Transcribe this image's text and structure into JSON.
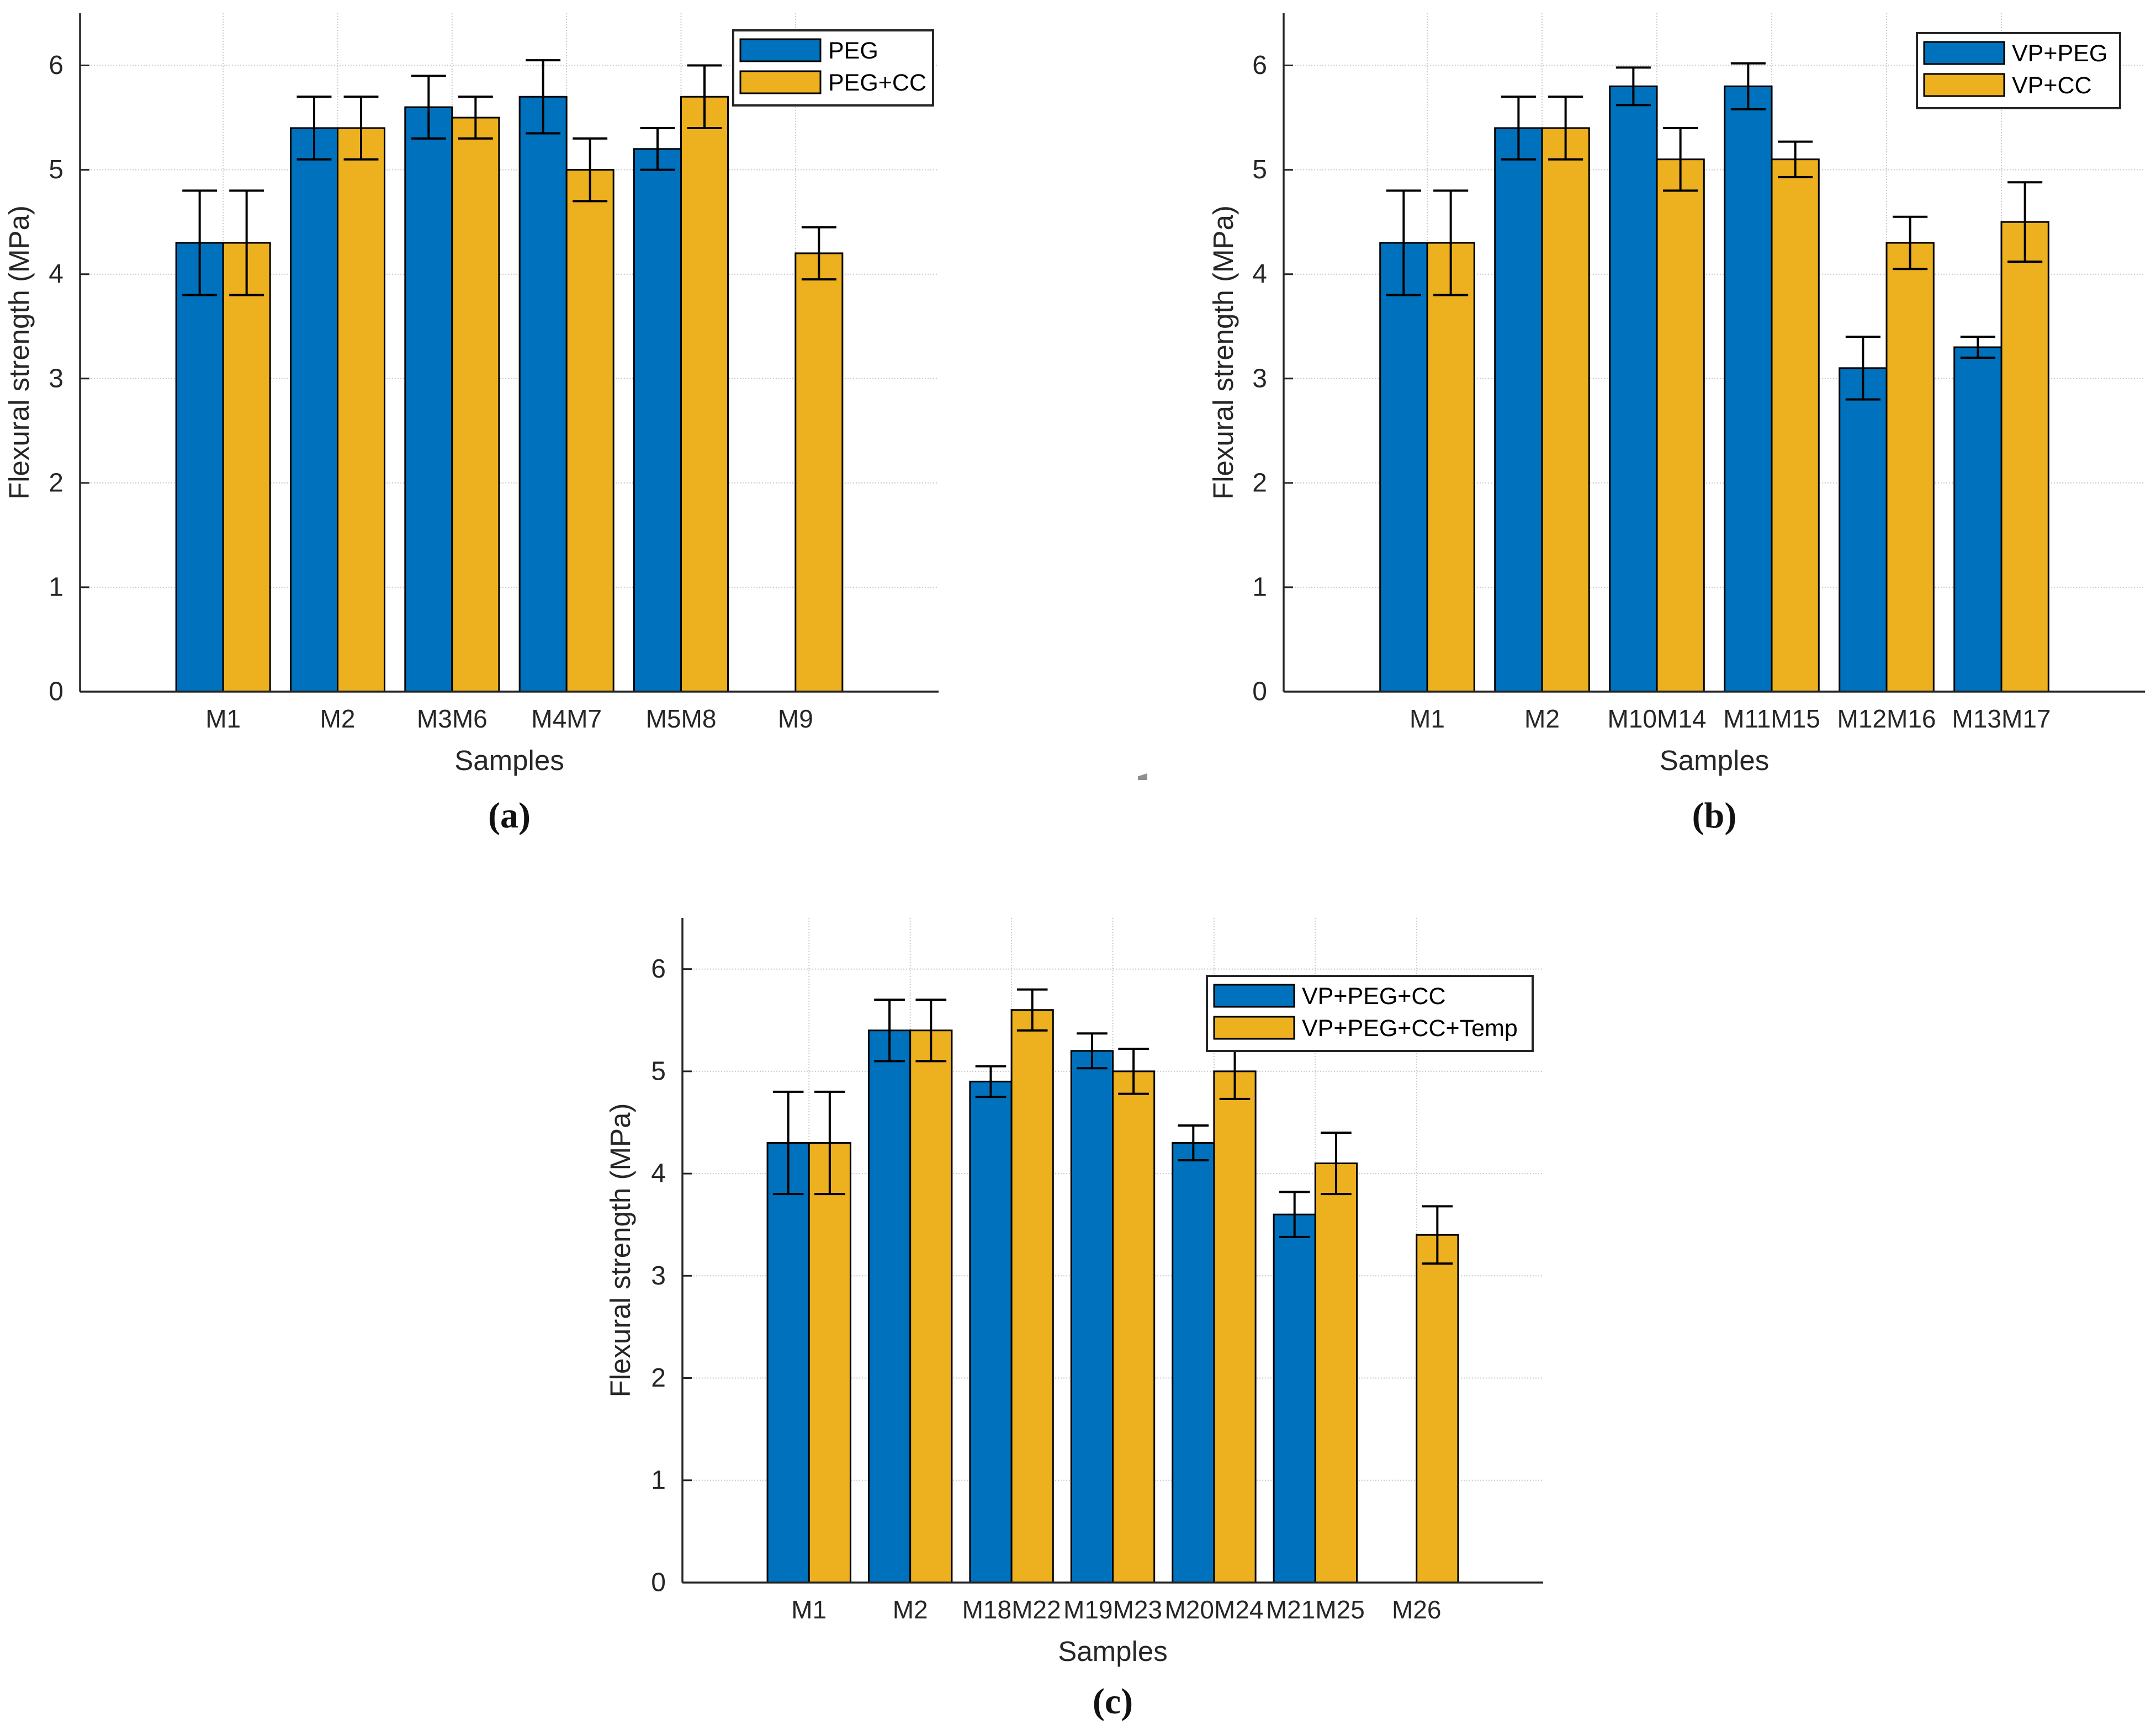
{
  "page": {
    "background": "#ffffff"
  },
  "colors": {
    "axis": "#262626",
    "tick_label": "#262626",
    "grid": "#c9c9c9",
    "bar_edge": "#000000",
    "error_bar": "#000000",
    "legend_border": "#262626",
    "legend_bg": "#ffffff",
    "series_blue": "#0072BD",
    "series_orange": "#EDB120"
  },
  "chart_data": [
    {
      "id": "a",
      "type": "bar",
      "caption": "(a)",
      "title": "",
      "xlabel": "Samples",
      "ylabel": "Flexural strength (MPa)",
      "ylim": [
        0,
        6.5
      ],
      "yticks": [
        0,
        1,
        2,
        3,
        4,
        5,
        6
      ],
      "grid": true,
      "legend_position": "top-right",
      "categories": [
        "M1",
        "M2",
        "M3M6",
        "M4M7",
        "M5M8",
        "M9"
      ],
      "series": [
        {
          "name": "PEG",
          "color": "#0072BD",
          "values": [
            4.3,
            5.4,
            5.6,
            5.7,
            5.2,
            null
          ],
          "errors": [
            0.5,
            0.3,
            0.3,
            0.35,
            0.2,
            null
          ]
        },
        {
          "name": "PEG+CC",
          "color": "#EDB120",
          "values": [
            4.3,
            5.4,
            5.5,
            5.0,
            5.7,
            4.2
          ],
          "errors": [
            0.5,
            0.3,
            0.2,
            0.3,
            0.3,
            0.25
          ]
        }
      ]
    },
    {
      "id": "b",
      "type": "bar",
      "caption": "(b)",
      "title": "",
      "xlabel": "Samples",
      "ylabel": "Flexural strength (MPa)",
      "ylim": [
        0,
        6.5
      ],
      "yticks": [
        0,
        1,
        2,
        3,
        4,
        5,
        6
      ],
      "grid": true,
      "legend_position": "top-right",
      "categories": [
        "M1",
        "M2",
        "M10M14",
        "M11M15",
        "M12M16",
        "M13M17"
      ],
      "series": [
        {
          "name": "VP+PEG",
          "color": "#0072BD",
          "values": [
            4.3,
            5.4,
            5.8,
            5.8,
            3.1,
            3.3
          ],
          "errors": [
            0.5,
            0.3,
            0.18,
            0.22,
            0.3,
            0.1
          ]
        },
        {
          "name": "VP+CC",
          "color": "#EDB120",
          "values": [
            4.3,
            5.4,
            5.1,
            5.1,
            4.3,
            4.5
          ],
          "errors": [
            0.5,
            0.3,
            0.3,
            0.17,
            0.25,
            0.38
          ]
        }
      ]
    },
    {
      "id": "c",
      "type": "bar",
      "caption": "(c)",
      "title": "",
      "xlabel": "Samples",
      "ylabel": "Flexural strength (MPa)",
      "ylim": [
        0,
        6.5
      ],
      "yticks": [
        0,
        1,
        2,
        3,
        4,
        5,
        6
      ],
      "grid": true,
      "legend_position": "top-right",
      "categories": [
        "M1",
        "M2",
        "M18M22",
        "M19M23",
        "M20M24",
        "M21M25",
        "M26"
      ],
      "series": [
        {
          "name": "VP+PEG+CC",
          "color": "#0072BD",
          "values": [
            4.3,
            5.4,
            4.9,
            5.2,
            4.3,
            3.6,
            null
          ],
          "errors": [
            0.5,
            0.3,
            0.15,
            0.17,
            0.17,
            0.22,
            null
          ]
        },
        {
          "name": "VP+PEG+CC+Temp",
          "color": "#EDB120",
          "values": [
            4.3,
            5.4,
            5.6,
            5.0,
            5.0,
            4.1,
            3.4
          ],
          "errors": [
            0.5,
            0.3,
            0.2,
            0.22,
            0.27,
            0.3,
            0.28
          ]
        }
      ]
    }
  ]
}
